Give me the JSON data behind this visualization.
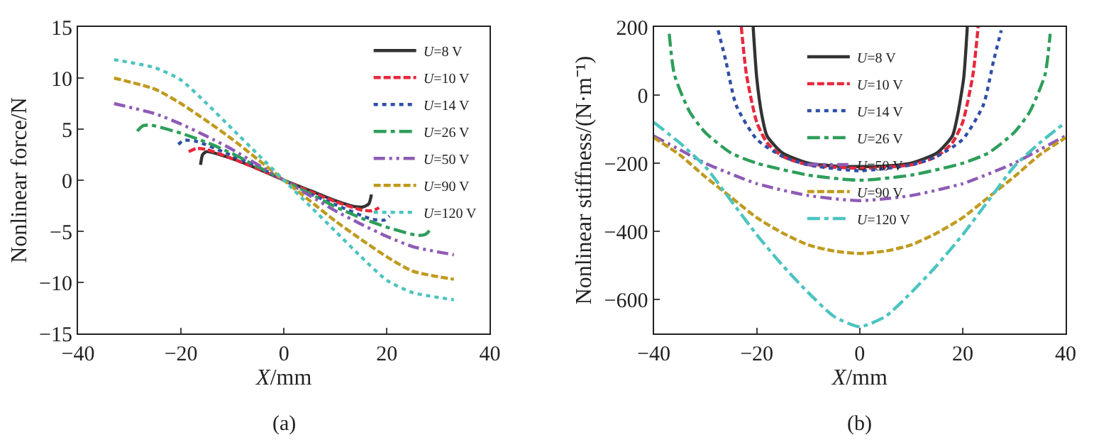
{
  "chart_data": [
    {
      "type": "line",
      "xlabel": "X/mm",
      "ylabel": "Nonlinear force/N",
      "xlim": [
        -40,
        40
      ],
      "ylim": [
        -15,
        15
      ],
      "xticks": [
        -40,
        -20,
        0,
        20,
        40
      ],
      "yticks": [
        -15,
        -10,
        -5,
        0,
        5,
        10,
        15
      ],
      "legend": "top right",
      "marker": "none",
      "annotations": [
        "(a)"
      ],
      "series": [
        {
          "name": "U=8 V",
          "color": "#333333",
          "line_style": "solid",
          "x": [
            -16.2,
            -15.8,
            -15,
            -10,
            -5,
            0,
            5,
            10,
            14,
            15.5,
            16.5,
            17
          ],
          "values": [
            1.5,
            2.5,
            2.8,
            2.1,
            1.1,
            0,
            -1.0,
            -2.0,
            -2.6,
            -2.6,
            -2.3,
            -1.4
          ]
        },
        {
          "name": "U=10 V",
          "color": "#e8283c",
          "line_style": "dashed",
          "x": [
            -18.5,
            -17,
            -15,
            -10,
            -5,
            0,
            5,
            10,
            15,
            17,
            18.5
          ],
          "values": [
            2.8,
            3.1,
            3.0,
            2.1,
            1.1,
            0,
            -1.1,
            -2.1,
            -2.9,
            -3.0,
            -2.7
          ]
        },
        {
          "name": "U=14 V",
          "color": "#2e4fa8",
          "line_style": "dotted",
          "x": [
            -20.5,
            -19.5,
            -17,
            -10,
            -5,
            0,
            5,
            10,
            17,
            19.5,
            20.5
          ],
          "values": [
            3.5,
            3.9,
            3.8,
            2.4,
            1.3,
            0,
            -1.3,
            -2.4,
            -3.8,
            -3.9,
            -3.5
          ]
        },
        {
          "name": "U=26 V",
          "color": "#2e9e5a",
          "line_style": "dashdot",
          "x": [
            -28.5,
            -27.5,
            -26,
            -20,
            -15,
            -10,
            -5,
            0,
            5,
            10,
            15,
            20,
            26,
            27.5,
            28.5
          ],
          "values": [
            4.8,
            5.3,
            5.4,
            4.6,
            3.7,
            2.6,
            1.3,
            0,
            -1.3,
            -2.6,
            -3.7,
            -4.6,
            -5.4,
            -5.3,
            -4.8
          ]
        },
        {
          "name": "U=50 V",
          "color": "#8e5bb5",
          "line_style": "dashdotdot",
          "x": [
            -33,
            -25,
            -20,
            -15,
            -10,
            -5,
            0,
            5,
            10,
            15,
            20,
            25,
            33
          ],
          "values": [
            7.5,
            6.5,
            5.5,
            4.3,
            3.0,
            1.5,
            0,
            -1.5,
            -3.0,
            -4.3,
            -5.5,
            -6.5,
            -7.3
          ]
        },
        {
          "name": "U=90 V",
          "color": "#c09a1e",
          "line_style": "dashed",
          "x": [
            -33,
            -25,
            -20,
            -15,
            -10,
            -5,
            0,
            5,
            10,
            15,
            20,
            25,
            33
          ],
          "values": [
            10,
            8.9,
            7.5,
            5.8,
            4.0,
            2.0,
            0,
            -2.0,
            -4.0,
            -5.8,
            -7.5,
            -8.9,
            -9.7
          ]
        },
        {
          "name": "U=120 V",
          "color": "#4cc4c0",
          "line_style": "dotted",
          "x": [
            -33,
            -25,
            -20,
            -15,
            -10,
            -5,
            0,
            5,
            10,
            15,
            20,
            25,
            33
          ],
          "values": [
            11.8,
            11,
            9.8,
            7.5,
            5.0,
            2.5,
            0,
            -2.5,
            -5.0,
            -7.5,
            -9.8,
            -11,
            -11.7
          ]
        }
      ]
    },
    {
      "type": "line",
      "xlabel": "X/mm",
      "ylabel": "Nonlinear stiffness/(N·m⁻¹)",
      "xlim": [
        -40,
        40
      ],
      "ylim": [
        -700,
        200
      ],
      "xticks": [
        -40,
        -20,
        0,
        20,
        40
      ],
      "yticks": [
        -600,
        -400,
        -200,
        0,
        200
      ],
      "legend": "top",
      "marker": "none",
      "annotations": [
        "(b)"
      ],
      "series": [
        {
          "name": "U=8 V",
          "color": "#333333",
          "line_style": "solid",
          "x": [
            -20.7,
            -20,
            -19,
            -18,
            -15,
            -10,
            -5,
            0,
            5,
            10,
            15,
            18,
            19,
            20.2,
            20.9
          ],
          "values": [
            200,
            50,
            -60,
            -120,
            -170,
            -200,
            -208,
            -210,
            -208,
            -200,
            -170,
            -120,
            -60,
            50,
            200
          ]
        },
        {
          "name": "U=10 V",
          "color": "#e8283c",
          "line_style": "dashed",
          "x": [
            -23,
            -22,
            -20,
            -18,
            -15,
            -10,
            0,
            10,
            15,
            18,
            20,
            22,
            23
          ],
          "values": [
            200,
            60,
            -80,
            -140,
            -180,
            -205,
            -215,
            -205,
            -180,
            -140,
            -80,
            60,
            200
          ]
        },
        {
          "name": "U=14 V",
          "color": "#2e4fa8",
          "line_style": "dotted",
          "x": [
            -27.5,
            -26,
            -24,
            -20,
            -15,
            -10,
            0,
            10,
            15,
            20,
            24,
            26,
            27.5
          ],
          "values": [
            190,
            100,
            -30,
            -130,
            -180,
            -205,
            -222,
            -205,
            -180,
            -130,
            -30,
            100,
            190
          ]
        },
        {
          "name": "U=26 V",
          "color": "#2e9e5a",
          "line_style": "dashdot",
          "x": [
            -37,
            -36,
            -33,
            -30,
            -25,
            -20,
            -10,
            0,
            10,
            20,
            25,
            30,
            33,
            36,
            37
          ],
          "values": [
            180,
            60,
            -50,
            -110,
            -170,
            -200,
            -235,
            -250,
            -235,
            -200,
            -170,
            -110,
            -50,
            60,
            180
          ]
        },
        {
          "name": "U=50 V",
          "color": "#8e5bb5",
          "line_style": "dashdotdot",
          "x": [
            -40,
            -35,
            -30,
            -20,
            -10,
            0,
            10,
            20,
            30,
            35,
            40
          ],
          "values": [
            -120,
            -160,
            -200,
            -260,
            -295,
            -310,
            -295,
            -260,
            -200,
            -160,
            -120
          ]
        },
        {
          "name": "U=90 V",
          "color": "#c09a1e",
          "line_style": "dashed",
          "x": [
            -40,
            -35,
            -30,
            -25,
            -20,
            -15,
            -10,
            -5,
            0,
            5,
            10,
            15,
            20,
            25,
            30,
            35,
            40
          ],
          "values": [
            -125,
            -175,
            -240,
            -300,
            -360,
            -405,
            -440,
            -458,
            -465,
            -458,
            -440,
            -405,
            -360,
            -300,
            -240,
            -175,
            -125
          ]
        },
        {
          "name": "U=120 V",
          "color": "#4cc4c0",
          "line_style": "dashdot",
          "x": [
            -40,
            -35,
            -30,
            -25,
            -20,
            -15,
            -10,
            -5,
            0,
            5,
            10,
            15,
            20,
            25,
            30,
            35,
            40
          ],
          "values": [
            -80,
            -140,
            -210,
            -310,
            -410,
            -500,
            -580,
            -650,
            -680,
            -650,
            -580,
            -500,
            -410,
            -310,
            -210,
            -140,
            -80
          ]
        }
      ]
    }
  ]
}
